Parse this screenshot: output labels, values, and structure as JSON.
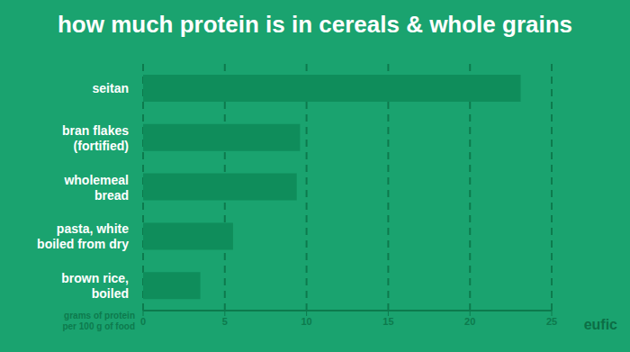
{
  "chart_data": {
    "type": "bar",
    "title": "how much protein is in cereals & whole grains",
    "orientation": "horizontal",
    "categories": [
      "seitan",
      "bran flakes\n(fortified)",
      "wholemeal\nbread",
      "pasta, white\nboiled from dry",
      "brown rice,\nboiled"
    ],
    "values": [
      23.1,
      9.6,
      9.4,
      5.5,
      3.5
    ],
    "color": "#0f8d5b",
    "x_label": "grams of protein\nper 100 g of food",
    "xlim": [
      0,
      25
    ],
    "xticks": [
      0,
      5,
      10,
      15,
      20,
      25
    ],
    "grid": true,
    "annotations": [
      "eufic"
    ]
  }
}
